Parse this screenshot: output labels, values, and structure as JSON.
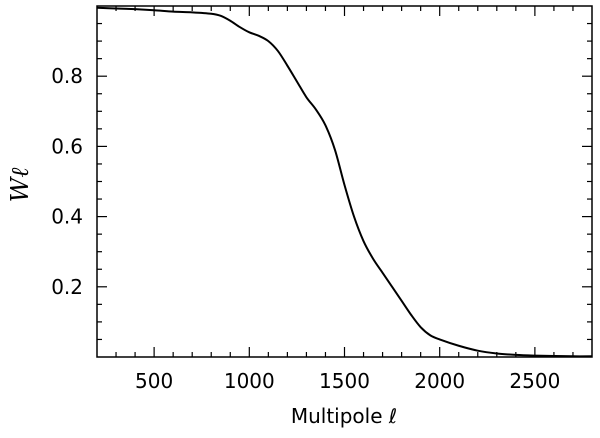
{
  "chart_data": {
    "type": "line",
    "title": "",
    "xlabel": "Multipole ℓ",
    "ylabel": "Wℓ",
    "xlim": [
      200,
      2800
    ],
    "ylim": [
      0.0,
      1.0
    ],
    "x_ticks": [
      500,
      1000,
      1500,
      2000,
      2500
    ],
    "x_tick_labels": [
      "500",
      "1000",
      "1500",
      "2000",
      "2500"
    ],
    "y_ticks": [
      0.2,
      0.4,
      0.6,
      0.8
    ],
    "y_tick_labels": [
      "0.2",
      "0.4",
      "0.6",
      "0.8"
    ],
    "grid": false,
    "legend": "none",
    "colors": {
      "line": "#000000",
      "axes": "#000000",
      "background": "#ffffff"
    },
    "series": [
      {
        "x": [
          200,
          300,
          400,
          500,
          600,
          700,
          800,
          850,
          900,
          950,
          1000,
          1050,
          1100,
          1150,
          1200,
          1250,
          1300,
          1350,
          1400,
          1450,
          1500,
          1550,
          1600,
          1650,
          1700,
          1750,
          1800,
          1850,
          1900,
          1950,
          2000,
          2100,
          2200,
          2300,
          2400,
          2500,
          2600,
          2700,
          2800
        ],
        "y": [
          0.995,
          0.993,
          0.991,
          0.988,
          0.984,
          0.982,
          0.978,
          0.972,
          0.958,
          0.94,
          0.925,
          0.915,
          0.9,
          0.872,
          0.83,
          0.785,
          0.74,
          0.705,
          0.66,
          0.59,
          0.49,
          0.4,
          0.33,
          0.28,
          0.24,
          0.2,
          0.16,
          0.12,
          0.085,
          0.062,
          0.05,
          0.032,
          0.018,
          0.01,
          0.006,
          0.004,
          0.003,
          0.002,
          0.002
        ]
      }
    ]
  }
}
